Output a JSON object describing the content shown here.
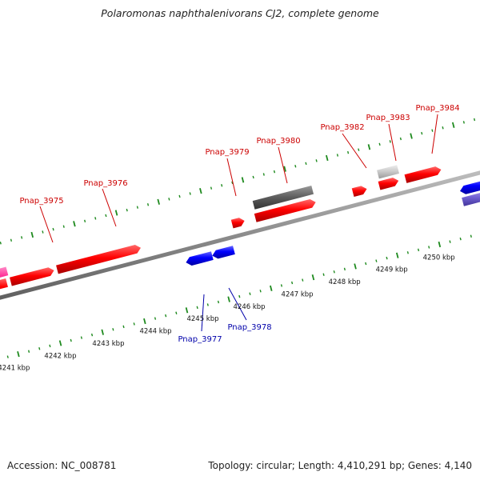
{
  "header": {
    "title": "Polaromonas naphthalenivorans CJ2, complete genome"
  },
  "footer": {
    "accession": "Accession: NC_008781",
    "summary": "Topology: circular; Length: 4,410,291 bp; Genes: 4,140"
  },
  "colors": {
    "backbone": "#8c8c8c",
    "tick": "#1e8a1e",
    "forward_gene": "#ff0000",
    "reverse_gene": "#0000ff",
    "label_forward": "#cc0000",
    "label_reverse": "#0000aa",
    "pink_gene": "#ff3fa0",
    "dark_gene": "#5e5e5e",
    "light_gene": "#c9c9c9",
    "purple_gene": "#7060d0"
  },
  "scale_labels": [
    "4241 kbp",
    "4242 kbp",
    "4243 kbp",
    "4244 kbp",
    "4245 kbp",
    "4246 kbp",
    "4247 kbp",
    "4248 kbp",
    "4249 kbp",
    "4250 kbp"
  ],
  "gene_labels": [
    {
      "text": "Pnap_3975",
      "strand": "forward"
    },
    {
      "text": "Pnap_3976",
      "strand": "forward"
    },
    {
      "text": "Pnap_3977",
      "strand": "reverse"
    },
    {
      "text": "Pnap_3978",
      "strand": "reverse"
    },
    {
      "text": "Pnap_3979",
      "strand": "forward"
    },
    {
      "text": "Pnap_3980",
      "strand": "forward"
    },
    {
      "text": "Pnap_3982",
      "strand": "forward"
    },
    {
      "text": "Pnap_3983",
      "strand": "forward"
    },
    {
      "text": "Pnap_3984",
      "strand": "forward"
    }
  ]
}
